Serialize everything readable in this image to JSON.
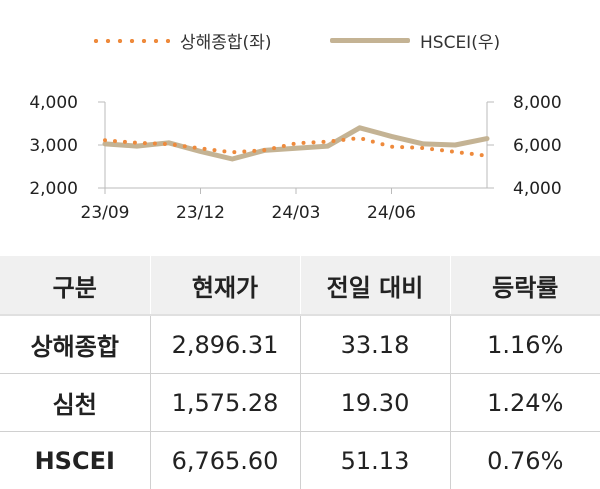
{
  "chart_data": {
    "type": "line",
    "x_ticks": [
      "23/09",
      "23/12",
      "24/03",
      "24/06"
    ],
    "y_left": {
      "ticks": [
        "4,000",
        "3,000",
        "2,000"
      ],
      "range": [
        2000,
        4000
      ]
    },
    "y_right": {
      "ticks": [
        "8,000",
        "6,000",
        "4,000"
      ],
      "range": [
        4000,
        8000
      ]
    },
    "series": [
      {
        "name": "상해종합(좌)",
        "axis": "left",
        "style": "dotted",
        "color": "#ee8a3c",
        "x": [
          "23/09",
          "23/10",
          "23/11",
          "23/12",
          "24/01",
          "24/02",
          "24/03",
          "24/04",
          "24/05",
          "24/06",
          "24/07",
          "24/08",
          "24/09"
        ],
        "values": [
          3110,
          3050,
          3020,
          2920,
          2830,
          2880,
          3040,
          3080,
          3160,
          2960,
          2930,
          2840,
          2750
        ]
      },
      {
        "name": "HSCEI(우)",
        "axis": "right",
        "style": "solid",
        "color": "#c4b394",
        "x": [
          "23/09",
          "23/10",
          "23/11",
          "23/12",
          "24/01",
          "24/02",
          "24/03",
          "24/04",
          "24/05",
          "24/06",
          "24/07",
          "24/08",
          "24/09"
        ],
        "values": [
          6050,
          5950,
          6100,
          5700,
          5350,
          5750,
          5850,
          5950,
          6800,
          6400,
          6050,
          6000,
          6300
        ]
      }
    ]
  },
  "table": {
    "headers": [
      "구분",
      "현재가",
      "전일 대비",
      "등락률"
    ],
    "rows": [
      [
        "상해종합",
        "2,896.31",
        "33.18",
        "1.16%"
      ],
      [
        "심천",
        "1,575.28",
        "19.30",
        "1.24%"
      ],
      [
        "HSCEI",
        "6,765.60",
        "51.13",
        "0.76%"
      ]
    ]
  }
}
